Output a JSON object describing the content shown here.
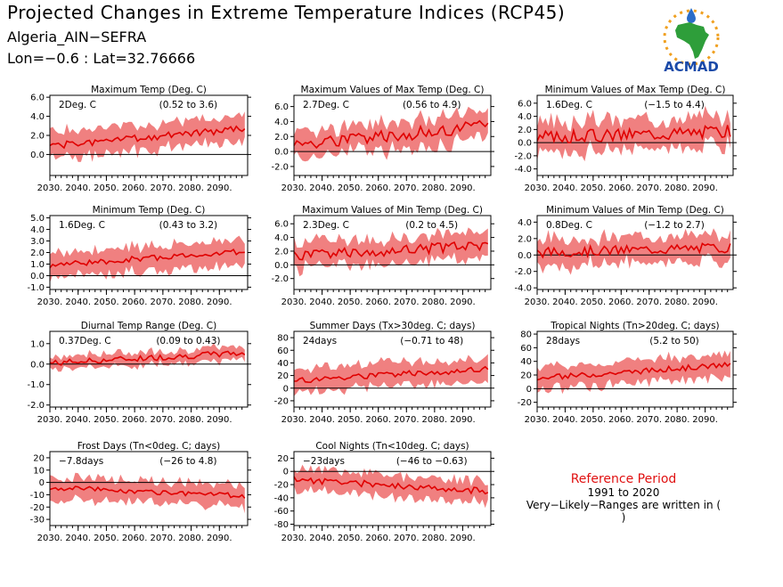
{
  "header": {
    "title": "Projected Changes in Extreme Temperature Indices (RCP45)",
    "location": "Algeria_AIN−SEFRA",
    "coordinates": "Lon=−0.6 : Lat=32.76666"
  },
  "logo": {
    "text": "ACMAD",
    "colors": {
      "africa": "#2e9e3a",
      "text": "#1a4aa8",
      "sun": "#f0a020",
      "drop": "#2a6cc8"
    }
  },
  "reference": {
    "title": "Reference Period",
    "period": "1991 to 2020",
    "note": "Very−Likely−Ranges are written in ( )"
  },
  "colors": {
    "band": "#f08080",
    "line": "#e00000",
    "zero": "#000000"
  },
  "chart_data": [
    {
      "type": "area",
      "title": "Maximum Temp (Deg. C)",
      "change": "2Deg. C",
      "range": "(0.52 to 3.6)",
      "yticks": [
        0,
        2,
        4,
        6
      ],
      "ytick_labels": [
        "0.0",
        "2.0",
        "4.0",
        "6.0"
      ],
      "ylim": [
        -2.2,
        6.2
      ],
      "xticks": [
        2030,
        2040,
        2050,
        2060,
        2070,
        2080,
        2090
      ],
      "xtick_labels": [
        "2030.",
        "2040.",
        "2050.",
        "2060.",
        "2070.",
        "2080.",
        "2090."
      ],
      "xlim": [
        2030,
        2100
      ],
      "start": 0.9,
      "end": 2.7,
      "noise": 0.35,
      "spread": 1.5,
      "seed": 1
    },
    {
      "type": "area",
      "title": "Maximum Values of Max Temp (Deg. C)",
      "change": "2.7Deg. C",
      "range": "(0.56 to 4.9)",
      "yticks": [
        -2,
        0,
        2,
        4,
        6
      ],
      "ytick_labels": [
        "-2.0",
        "0.0",
        "2.0",
        "4.0",
        "6.0"
      ],
      "ylim": [
        -3.2,
        7.5
      ],
      "xticks": [
        2030,
        2040,
        2050,
        2060,
        2070,
        2080,
        2090
      ],
      "xtick_labels": [
        "2030.",
        "2040.",
        "2050.",
        "2060.",
        "2070.",
        "2080.",
        "2090."
      ],
      "xlim": [
        2030,
        2100
      ],
      "start": 1.0,
      "end": 3.3,
      "noise": 0.9,
      "spread": 2.0,
      "seed": 2
    },
    {
      "type": "area",
      "title": "Minimum Values of Max Temp (Deg. C)",
      "change": "1.6Deg. C",
      "range": "(−1.5 to 4.4)",
      "yticks": [
        -4,
        -2,
        0,
        2,
        4,
        6
      ],
      "ytick_labels": [
        "-4.0",
        "-2.0",
        "0.0",
        "2.0",
        "4.0",
        "6.0"
      ],
      "ylim": [
        -5,
        7.2
      ],
      "xticks": [
        2030,
        2040,
        2050,
        2060,
        2070,
        2080,
        2090
      ],
      "xtick_labels": [
        "2030.",
        "2040.",
        "2050.",
        "2060.",
        "2070.",
        "2080.",
        "2090."
      ],
      "xlim": [
        2030,
        2100
      ],
      "start": 0.8,
      "end": 1.8,
      "noise": 1.0,
      "spread": 2.5,
      "seed": 3
    },
    {
      "type": "area",
      "title": "Minimum Temp (Deg. C)",
      "change": "1.6Deg. C",
      "range": "(0.43 to 3.2)",
      "yticks": [
        -1,
        0,
        1,
        2,
        3,
        4,
        5
      ],
      "ytick_labels": [
        "-1.0",
        "0.0",
        "1.0",
        "2.0",
        "3.0",
        "4.0",
        "5.0"
      ],
      "ylim": [
        -1.2,
        5.2
      ],
      "xticks": [
        2030,
        2040,
        2050,
        2060,
        2070,
        2080,
        2090
      ],
      "xtick_labels": [
        "2030.",
        "2040.",
        "2050.",
        "2060.",
        "2070.",
        "2080.",
        "2090."
      ],
      "xlim": [
        2030,
        2100
      ],
      "start": 0.9,
      "end": 2.1,
      "noise": 0.25,
      "spread": 1.2,
      "seed": 4
    },
    {
      "type": "area",
      "title": "Maximum Values of Min Temp (Deg. C)",
      "change": "2.3Deg. C",
      "range": "(0.2 to 4.5)",
      "yticks": [
        -2,
        0,
        2,
        4,
        6
      ],
      "ytick_labels": [
        "-2.0",
        "0.0",
        "2.0",
        "4.0",
        "6.0"
      ],
      "ylim": [
        -3.6,
        7.2
      ],
      "xticks": [
        2030,
        2040,
        2050,
        2060,
        2070,
        2080,
        2090
      ],
      "xtick_labels": [
        "2030.",
        "2040.",
        "2050.",
        "2060.",
        "2070.",
        "2080.",
        "2090."
      ],
      "xlim": [
        2030,
        2100
      ],
      "start": 1.3,
      "end": 2.9,
      "noise": 0.8,
      "spread": 2.0,
      "seed": 5
    },
    {
      "type": "area",
      "title": "Minimum Values of Min Temp (Deg. C)",
      "change": "0.8Deg. C",
      "range": "(−1.2 to 2.7)",
      "yticks": [
        -4,
        -2,
        0,
        2,
        4
      ],
      "ytick_labels": [
        "-4.0",
        "-2.0",
        "0.0",
        "2.0",
        "4.0"
      ],
      "ylim": [
        -4.2,
        4.8
      ],
      "xticks": [
        2030,
        2040,
        2050,
        2060,
        2070,
        2080,
        2090
      ],
      "xtick_labels": [
        "2030.",
        "2040.",
        "2050.",
        "2060.",
        "2070.",
        "2080.",
        "2090."
      ],
      "xlim": [
        2030,
        2100
      ],
      "start": 0.3,
      "end": 0.9,
      "noise": 0.6,
      "spread": 1.8,
      "seed": 6
    },
    {
      "type": "area",
      "title": "Diurnal Temp Range (Deg. C)",
      "change": "0.37Deg. C",
      "range": "(0.09 to 0.43)",
      "yticks": [
        -2,
        -1,
        0,
        1
      ],
      "ytick_labels": [
        "-2.0",
        "-1.0",
        "0.0",
        "1.0"
      ],
      "ylim": [
        -2.1,
        1.6
      ],
      "xticks": [
        2030,
        2040,
        2050,
        2060,
        2070,
        2080,
        2090
      ],
      "xtick_labels": [
        "2030.",
        "2040.",
        "2050.",
        "2060.",
        "2070.",
        "2080.",
        "2090."
      ],
      "xlim": [
        2030,
        2100
      ],
      "start": 0.05,
      "end": 0.55,
      "noise": 0.15,
      "spread": 0.35,
      "seed": 7
    },
    {
      "type": "area",
      "title": "Summer Days (Tx>30deg. C; days)",
      "change": "24days",
      "range": "(−0.71 to 48)",
      "yticks": [
        -20,
        0,
        20,
        40,
        60,
        80
      ],
      "ytick_labels": [
        "-20",
        "0",
        "20",
        "40",
        "60",
        "80"
      ],
      "ylim": [
        -30,
        90
      ],
      "xticks": [
        2030,
        2040,
        2050,
        2060,
        2070,
        2080,
        2090
      ],
      "xtick_labels": [
        "2030.",
        "2040.",
        "2050.",
        "2060.",
        "2070.",
        "2080.",
        "2090."
      ],
      "xlim": [
        2030,
        2100
      ],
      "start": 12,
      "end": 30,
      "noise": 5,
      "spread": 20,
      "seed": 8
    },
    {
      "type": "area",
      "title": "Tropical Nights (Tn>20deg. C; days)",
      "change": "28days",
      "range": "(5.2 to 50)",
      "yticks": [
        -20,
        0,
        20,
        40,
        60,
        80
      ],
      "ytick_labels": [
        "-20",
        "0",
        "20",
        "40",
        "60",
        "80"
      ],
      "ylim": [
        -27,
        84
      ],
      "xticks": [
        2030,
        2040,
        2050,
        2060,
        2070,
        2080,
        2090
      ],
      "xtick_labels": [
        "2030.",
        "2040.",
        "2050.",
        "2060.",
        "2070.",
        "2080.",
        "2090."
      ],
      "xlim": [
        2030,
        2100
      ],
      "start": 15,
      "end": 35,
      "noise": 4,
      "spread": 18,
      "seed": 9
    },
    {
      "type": "area",
      "title": "Frost Days (Tn<0deg. C; days)",
      "change": "−7.8days",
      "range": "(−26 to 4.8)",
      "yticks": [
        -30,
        -20,
        -10,
        0,
        10,
        20
      ],
      "ytick_labels": [
        "-30",
        "-20",
        "-10",
        "0",
        "10",
        "20"
      ],
      "ylim": [
        -35,
        25
      ],
      "xticks": [
        2030,
        2040,
        2050,
        2060,
        2070,
        2080,
        2090
      ],
      "xtick_labels": [
        "2030.",
        "2040.",
        "2050.",
        "2060.",
        "2070.",
        "2080.",
        "2090."
      ],
      "xlim": [
        2030,
        2100
      ],
      "start": -4,
      "end": -11,
      "noise": 2,
      "spread": 10,
      "seed": 10
    },
    {
      "type": "area",
      "title": "Cool Nights (Tn<10deg. C; days)",
      "change": "−23days",
      "range": "(−46 to −0.63)",
      "yticks": [
        -80,
        -60,
        -40,
        -20,
        0,
        20
      ],
      "ytick_labels": [
        "-80",
        "-60",
        "-40",
        "-20",
        "0",
        "20"
      ],
      "ylim": [
        -82,
        30
      ],
      "xticks": [
        2030,
        2040,
        2050,
        2060,
        2070,
        2080,
        2090
      ],
      "xtick_labels": [
        "2030.",
        "2040.",
        "2050.",
        "2060.",
        "2070.",
        "2080.",
        "2090."
      ],
      "xlim": [
        2030,
        2100
      ],
      "start": -12,
      "end": -30,
      "noise": 5,
      "spread": 18,
      "seed": 11
    }
  ]
}
